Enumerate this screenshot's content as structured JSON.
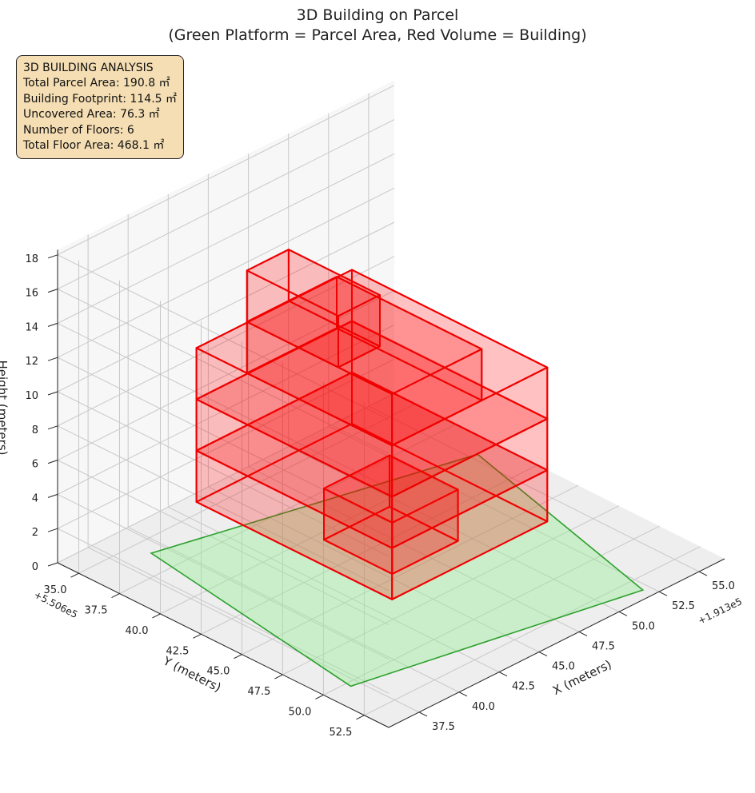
{
  "chart_data": {
    "type": "3d-bar",
    "title": "3D Building on Parcel",
    "subtitle": "(Green Platform = Parcel Area, Red Volume = Building)",
    "xlabel": "X (meters)",
    "ylabel": "Y (meters)",
    "zlabel": "Height (meters)",
    "x_offset": "+1.913e5",
    "y_offset": "+5.506e5",
    "x_ticks": [
      "37.5",
      "40.0",
      "42.5",
      "45.0",
      "47.5",
      "50.0",
      "52.5",
      "55.0"
    ],
    "y_ticks": [
      "35.0",
      "37.5",
      "40.0",
      "42.5",
      "45.0",
      "47.5",
      "50.0",
      "52.5"
    ],
    "z_ticks": [
      "0",
      "2",
      "4",
      "6",
      "8",
      "10",
      "12",
      "14",
      "16",
      "18"
    ],
    "xlim": [
      35.6,
      56.6
    ],
    "ylim": [
      33.7,
      54.0
    ],
    "zlim": [
      0,
      18.3
    ],
    "grid": true,
    "parcel": {
      "name": "Parcel Area",
      "color": "#2ca02c",
      "fill": "#90ee90",
      "polygon": [
        [
          37.0,
          50.3
        ],
        [
          39.1,
          36.0
        ],
        [
          55.4,
          40.0
        ],
        [
          52.1,
          53.4
        ]
      ],
      "z": 0
    },
    "building": {
      "name": "Building",
      "color": "#ee0000",
      "fill": "#ff0000",
      "floors": 6,
      "floor_height": 3.0,
      "blocks": [
        {
          "x": [
            45.3,
            49.4
          ],
          "y": [
            40.5,
            44.7
          ],
          "z": [
            0,
            3
          ]
        },
        {
          "x": [
            40.5,
            50.2
          ],
          "y": [
            37.4,
            49.4
          ],
          "z": [
            3,
            6
          ]
        },
        {
          "x": [
            40.5,
            50.2
          ],
          "y": [
            37.4,
            49.4
          ],
          "z": [
            6,
            9
          ]
        },
        {
          "x": [
            40.5,
            50.2
          ],
          "y": [
            37.4,
            49.4
          ],
          "z": [
            9,
            12
          ]
        },
        {
          "x": [
            40.5,
            46.1
          ],
          "y": [
            40.5,
            49.4
          ],
          "z": [
            12,
            15
          ]
        },
        {
          "x": [
            40.5,
            43.1
          ],
          "y": [
            40.5,
            46.1
          ],
          "z": [
            15,
            18
          ]
        }
      ]
    },
    "analysis": {
      "heading": "3D BUILDING ANALYSIS",
      "lines": [
        "Total Parcel Area: 190.8 ㎡",
        "Building Footprint: 114.5 ㎡",
        "Uncovered Area: 76.3 ㎡",
        "Number of Floors: 6",
        "Total Floor Area: 468.1 ㎡"
      ]
    }
  },
  "colors": {
    "pane_left": "#f2f2f2",
    "pane_right": "#f7f7f7",
    "pane_floor": "#eeeeee",
    "grid": "#c8c8c8",
    "infobox": "#f5deb3"
  }
}
